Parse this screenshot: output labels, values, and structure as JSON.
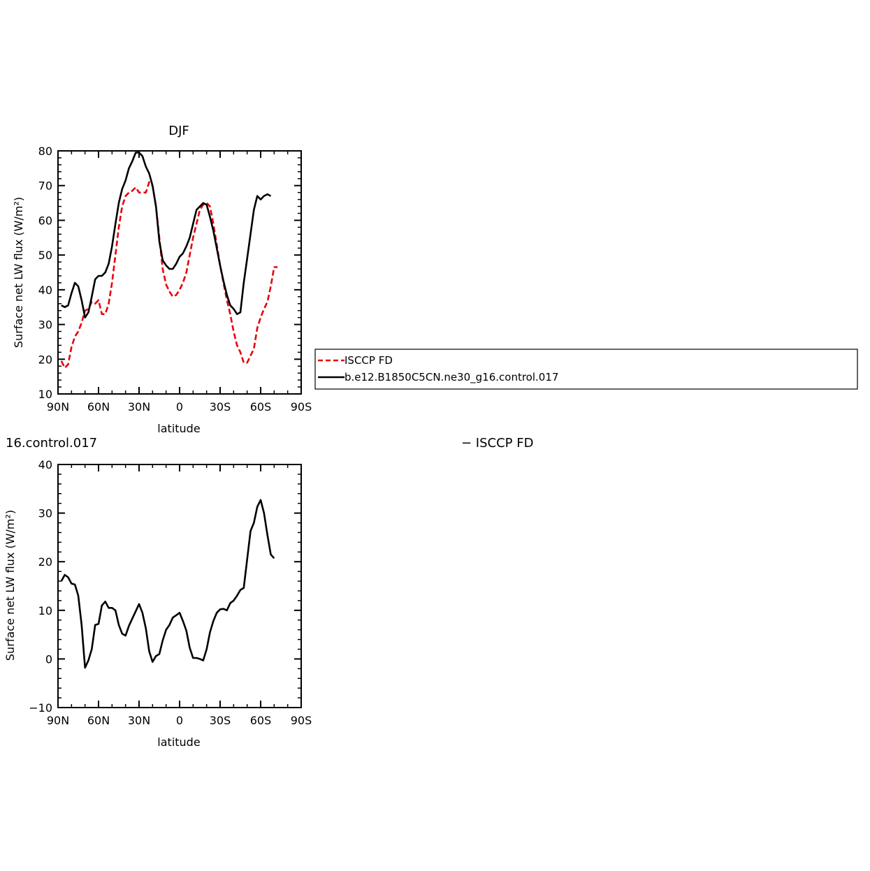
{
  "chart_data": [
    {
      "type": "line",
      "title": "DJF",
      "xlabel": "latitude",
      "ylabel": "Surface net LW flux (W/m²)",
      "xlim": [
        90,
        -90
      ],
      "ylim": [
        10,
        80
      ],
      "x_ticks": [
        {
          "value": 90,
          "label": "90N"
        },
        {
          "value": 60,
          "label": "60N"
        },
        {
          "value": 30,
          "label": "30N"
        },
        {
          "value": 0,
          "label": "0"
        },
        {
          "value": -30,
          "label": "30S"
        },
        {
          "value": -60,
          "label": "60S"
        },
        {
          "value": -90,
          "label": "90S"
        }
      ],
      "y_ticks": [
        10,
        20,
        30,
        40,
        50,
        60,
        70,
        80
      ],
      "legend": [
        "ISCCP FD",
        "b.e12.B1850C5CN.ne30_g16.control.017"
      ],
      "series": [
        {
          "name": "ISCCP FD",
          "color": "#e8000b",
          "dash": true,
          "points": [
            [
              87.5,
              19.5
            ],
            [
              85,
              17.5
            ],
            [
              82.5,
              18.5
            ],
            [
              80,
              23.5
            ],
            [
              77.5,
              26.5
            ],
            [
              75,
              28
            ],
            [
              72.5,
              30.5
            ],
            [
              70,
              34
            ],
            [
              67.5,
              34.5
            ],
            [
              65,
              36.5
            ],
            [
              62.5,
              36
            ],
            [
              60,
              37
            ],
            [
              57.5,
              33
            ],
            [
              55,
              33
            ],
            [
              52.5,
              36
            ],
            [
              50,
              42
            ],
            [
              47.5,
              50
            ],
            [
              45,
              58
            ],
            [
              42.5,
              64
            ],
            [
              40,
              67
            ],
            [
              37.5,
              68
            ],
            [
              35,
              68.5
            ],
            [
              32.5,
              69.5
            ],
            [
              30,
              68
            ],
            [
              27.5,
              68
            ],
            [
              25,
              68
            ],
            [
              22.5,
              71
            ],
            [
              20,
              70
            ],
            [
              17.5,
              64
            ],
            [
              15,
              55
            ],
            [
              12.5,
              46
            ],
            [
              10,
              41.5
            ],
            [
              7.5,
              39.5
            ],
            [
              5,
              38
            ],
            [
              2.5,
              38.5
            ],
            [
              0,
              40
            ],
            [
              -2.5,
              42
            ],
            [
              -5,
              45
            ],
            [
              -7.5,
              50
            ],
            [
              -10,
              55
            ],
            [
              -12.5,
              59
            ],
            [
              -15,
              63
            ],
            [
              -17.5,
              64.5
            ],
            [
              -20,
              65
            ],
            [
              -22.5,
              64
            ],
            [
              -25,
              59
            ],
            [
              -27.5,
              53
            ],
            [
              -30,
              47
            ],
            [
              -32.5,
              42
            ],
            [
              -35,
              37
            ],
            [
              -37.5,
              33
            ],
            [
              -40,
              28
            ],
            [
              -42.5,
              24
            ],
            [
              -45,
              22
            ],
            [
              -47.5,
              19
            ],
            [
              -50,
              19
            ],
            [
              -52.5,
              21
            ],
            [
              -55,
              23
            ],
            [
              -57.5,
              29
            ],
            [
              -60,
              32
            ],
            [
              -62.5,
              34.5
            ],
            [
              -65,
              36.5
            ],
            [
              -67.5,
              41
            ],
            [
              -70,
              46.5
            ],
            [
              -72.5,
              46.5
            ]
          ]
        },
        {
          "name": "b.e12.B1850C5CN.ne30_g16.control.017",
          "color": "#000000",
          "dash": false,
          "points": [
            [
              87.5,
              35.5
            ],
            [
              85,
              35
            ],
            [
              82.5,
              35.5
            ],
            [
              80,
              39
            ],
            [
              77.5,
              42
            ],
            [
              75,
              41
            ],
            [
              72.5,
              37
            ],
            [
              70,
              32
            ],
            [
              67.5,
              33.5
            ],
            [
              65,
              38
            ],
            [
              62.5,
              43
            ],
            [
              60,
              44
            ],
            [
              57.5,
              44
            ],
            [
              55,
              45
            ],
            [
              52.5,
              47.5
            ],
            [
              50,
              52.5
            ],
            [
              47.5,
              59
            ],
            [
              45,
              65
            ],
            [
              42.5,
              69
            ],
            [
              40,
              71.5
            ],
            [
              37.5,
              75
            ],
            [
              35,
              77
            ],
            [
              32.5,
              79.5
            ],
            [
              30,
              79.5
            ],
            [
              27.5,
              78.5
            ],
            [
              25,
              75.5
            ],
            [
              22.5,
              73.5
            ],
            [
              20,
              70
            ],
            [
              17.5,
              64
            ],
            [
              15,
              54
            ],
            [
              12.5,
              48.5
            ],
            [
              10,
              47
            ],
            [
              7.5,
              46
            ],
            [
              5,
              46
            ],
            [
              2.5,
              47.5
            ],
            [
              0,
              49.5
            ],
            [
              -2.5,
              50.5
            ],
            [
              -5,
              52.5
            ],
            [
              -7.5,
              55
            ],
            [
              -10,
              59
            ],
            [
              -12.5,
              63
            ],
            [
              -15,
              64
            ],
            [
              -17.5,
              65
            ],
            [
              -20,
              64.5
            ],
            [
              -22.5,
              61
            ],
            [
              -25,
              57
            ],
            [
              -27.5,
              52
            ],
            [
              -30,
              47
            ],
            [
              -32.5,
              42.5
            ],
            [
              -35,
              38.5
            ],
            [
              -37.5,
              35.5
            ],
            [
              -40,
              34.5
            ],
            [
              -42.5,
              33
            ],
            [
              -45,
              33.5
            ],
            [
              -47.5,
              42
            ],
            [
              -50,
              49
            ],
            [
              -52.5,
              56
            ],
            [
              -55,
              63
            ],
            [
              -57.5,
              67
            ],
            [
              -60,
              66
            ],
            [
              -62.5,
              67
            ],
            [
              -65,
              67.5
            ],
            [
              -67.5,
              67
            ]
          ]
        }
      ]
    },
    {
      "type": "line",
      "title_left": "16.control.017",
      "title_right": "− ISCCP FD",
      "xlabel": "latitude",
      "ylabel": "Surface net LW flux (W/m²)",
      "xlim": [
        90,
        -90
      ],
      "ylim": [
        -10,
        40
      ],
      "x_ticks": [
        {
          "value": 90,
          "label": "90N"
        },
        {
          "value": 60,
          "label": "60N"
        },
        {
          "value": 30,
          "label": "30N"
        },
        {
          "value": 0,
          "label": "0"
        },
        {
          "value": -30,
          "label": "30S"
        },
        {
          "value": -60,
          "label": "60S"
        },
        {
          "value": -90,
          "label": "90S"
        }
      ],
      "y_ticks": [
        -10,
        0,
        10,
        20,
        30,
        40
      ],
      "y_tick_labels": [
        "−10",
        "0",
        "10",
        "20",
        "30",
        "40"
      ],
      "series": [
        {
          "color": "#000000",
          "dash": false,
          "points": [
            [
              87.5,
              16
            ],
            [
              85,
              17.3
            ],
            [
              82.5,
              16.8
            ],
            [
              80,
              15.5
            ],
            [
              77.5,
              15.3
            ],
            [
              75,
              13
            ],
            [
              72.5,
              7
            ],
            [
              70,
              -1.8
            ],
            [
              67.5,
              -0.3
            ],
            [
              65,
              2
            ],
            [
              62.5,
              7
            ],
            [
              60,
              7.2
            ],
            [
              57.5,
              11
            ],
            [
              55,
              11.8
            ],
            [
              52.5,
              10.5
            ],
            [
              50,
              10.5
            ],
            [
              47.5,
              10
            ],
            [
              45,
              7
            ],
            [
              42.5,
              5.2
            ],
            [
              40,
              4.8
            ],
            [
              37.5,
              6.8
            ],
            [
              35,
              8.3
            ],
            [
              32.5,
              9.8
            ],
            [
              30,
              11.3
            ],
            [
              27.5,
              9.5
            ],
            [
              25,
              6.3
            ],
            [
              22.5,
              1.6
            ],
            [
              20,
              -0.6
            ],
            [
              17.5,
              0.6
            ],
            [
              15,
              1
            ],
            [
              12.5,
              3.8
            ],
            [
              10,
              6
            ],
            [
              7.5,
              7
            ],
            [
              5,
              8.5
            ],
            [
              2.5,
              9
            ],
            [
              0,
              9.5
            ],
            [
              -2.5,
              7.8
            ],
            [
              -5,
              5.8
            ],
            [
              -7.5,
              2.3
            ],
            [
              -10,
              0.2
            ],
            [
              -12.5,
              0.2
            ],
            [
              -15,
              0
            ],
            [
              -17.5,
              -0.3
            ],
            [
              -20,
              2
            ],
            [
              -22.5,
              5.5
            ],
            [
              -25,
              7.8
            ],
            [
              -27.5,
              9.5
            ],
            [
              -30,
              10.2
            ],
            [
              -32.5,
              10.3
            ],
            [
              -35,
              10
            ],
            [
              -37.5,
              11.5
            ],
            [
              -40,
              12
            ],
            [
              -42.5,
              13
            ],
            [
              -45,
              14.2
            ],
            [
              -47.5,
              14.6
            ],
            [
              -50,
              20.5
            ],
            [
              -52.5,
              26.3
            ],
            [
              -55,
              28
            ],
            [
              -57.5,
              31.3
            ],
            [
              -60,
              32.7
            ],
            [
              -62.5,
              30
            ],
            [
              -65,
              25.5
            ],
            [
              -67.5,
              21.5
            ],
            [
              -70,
              20.7
            ]
          ]
        }
      ]
    }
  ]
}
